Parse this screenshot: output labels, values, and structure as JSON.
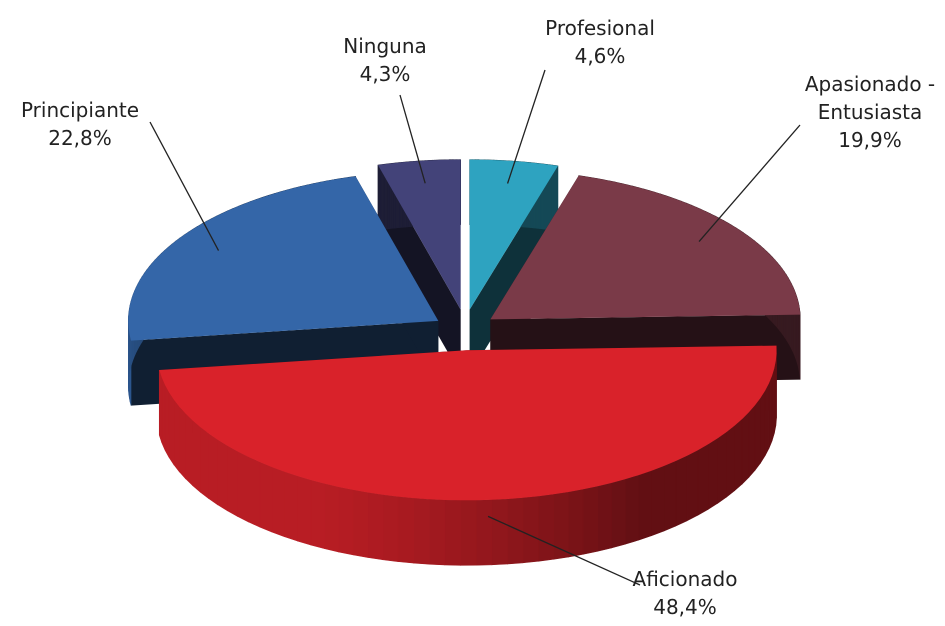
{
  "chart_data": {
    "type": "pie",
    "categories": [
      "Profesional",
      "Apasionado - Entusiasta",
      "Aficionado",
      "Principiante",
      "Ninguna"
    ],
    "values": [
      4.6,
      19.9,
      48.4,
      22.8,
      4.3
    ],
    "value_labels": [
      "4,6%",
      "19,9%",
      "48,4%",
      "22,8%",
      "4,3%"
    ],
    "colors": [
      "#2ea3c0",
      "#7a3a48",
      "#d9222a",
      "#3466a8",
      "#434379"
    ]
  }
}
